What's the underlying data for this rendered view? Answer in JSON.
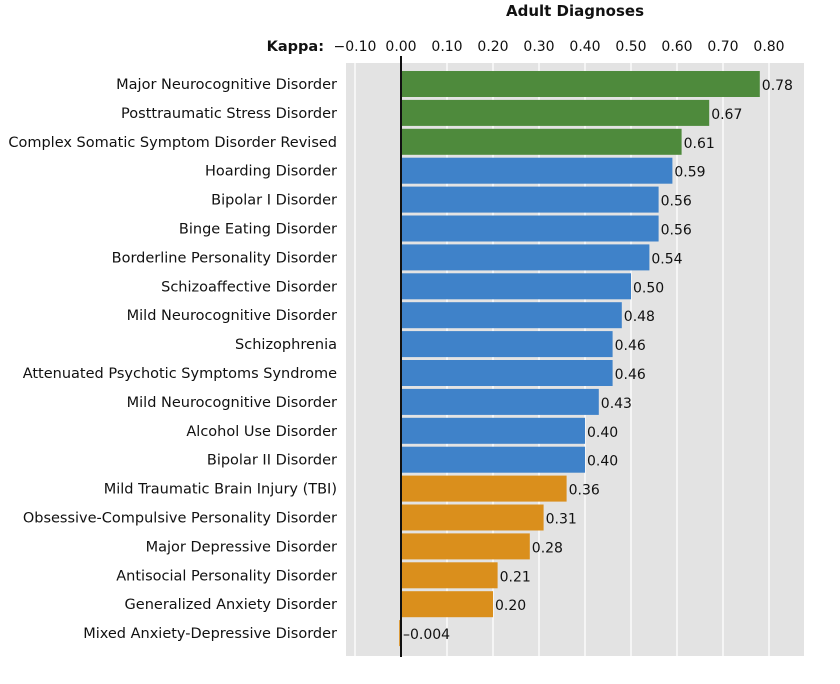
{
  "chart_data": {
    "type": "bar",
    "orientation": "horizontal",
    "title": "Adult Diagnoses",
    "axis_label": "Kappa:",
    "xlim": [
      -0.1,
      0.8
    ],
    "ticks": [
      "−0.10",
      "0.00",
      "0.10",
      "0.20",
      "0.30",
      "0.40",
      "0.50",
      "0.60",
      "0.70",
      "0.80"
    ],
    "tick_values": [
      -0.1,
      0.0,
      0.1,
      0.2,
      0.3,
      0.4,
      0.5,
      0.6,
      0.7,
      0.8
    ],
    "grid": true,
    "categories": [
      "Major Neurocognitive Disorder",
      "Posttraumatic Stress Disorder",
      "Complex Somatic Symptom Disorder Revised",
      "Hoarding Disorder",
      "Bipolar I Disorder",
      "Binge Eating Disorder",
      "Borderline Personality Disorder",
      "Schizoaffective Disorder",
      "Mild Neurocognitive Disorder",
      "Schizophrenia",
      "Attenuated Psychotic Symptoms Syndrome",
      "Mild Neurocognitive Disorder",
      "Alcohol Use Disorder",
      "Bipolar II Disorder",
      "Mild Traumatic Brain Injury (TBI)",
      "Obsessive-Compulsive Personality Disorder",
      "Major Depressive Disorder",
      "Antisocial Personality Disorder",
      "Generalized Anxiety Disorder",
      "Mixed Anxiety-Depressive Disorder"
    ],
    "values": [
      0.78,
      0.67,
      0.61,
      0.59,
      0.56,
      0.56,
      0.54,
      0.5,
      0.48,
      0.46,
      0.46,
      0.43,
      0.4,
      0.4,
      0.36,
      0.31,
      0.28,
      0.21,
      0.2,
      -0.004
    ],
    "value_labels": [
      "0.78",
      "0.67",
      "0.61",
      "0.59",
      "0.56",
      "0.56",
      "0.54",
      "0.50",
      "0.48",
      "0.46",
      "0.46",
      "0.43",
      "0.40",
      "0.40",
      "0.36",
      "0.31",
      "0.28",
      "0.21",
      "0.20",
      "–0.004"
    ],
    "bar_groups": [
      "green",
      "green",
      "green",
      "blue",
      "blue",
      "blue",
      "blue",
      "blue",
      "blue",
      "blue",
      "blue",
      "blue",
      "blue",
      "blue",
      "orange",
      "orange",
      "orange",
      "orange",
      "orange",
      "orange"
    ],
    "colors": {
      "green": "#4e8a3c",
      "blue": "#3f82c9",
      "orange": "#da8f1c",
      "background": "#e3e3e3",
      "grid": "#ffffff",
      "zero_line": "#111111"
    }
  }
}
